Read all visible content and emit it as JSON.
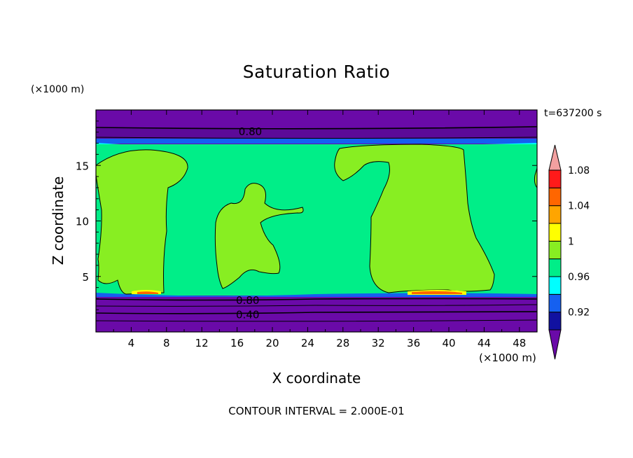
{
  "chart_data": {
    "type": "heatmap",
    "title": "Saturation Ratio",
    "xlabel": "X coordinate",
    "ylabel": "Z coordinate",
    "x_unit": "(×1000 m)",
    "y_unit": "(×1000 m)",
    "time_label": "t=637200 s",
    "footer": "CONTOUR INTERVAL = 2.000E-01",
    "xlim": [
      0,
      50
    ],
    "ylim": [
      0,
      20
    ],
    "x_ticks": [
      4,
      8,
      12,
      16,
      20,
      24,
      28,
      32,
      36,
      40,
      44,
      48
    ],
    "y_ticks": [
      5,
      10,
      15
    ],
    "contour_labels": [
      {
        "text": "0.80",
        "x": 17.5,
        "z": 18.1
      },
      {
        "text": "0.80",
        "x": 17.2,
        "z": 2.9
      },
      {
        "text": "0.40",
        "x": 17.2,
        "z": 1.6
      }
    ],
    "colorbar": {
      "levels": [
        "0.92",
        "0.96",
        "1",
        "1.04",
        "1.08"
      ],
      "colors": [
        "#6a0aa8",
        "#1111a0",
        "#1560f0",
        "#00ffff",
        "#00ee88",
        "#88ee22",
        "#ffff00",
        "#ffa500",
        "#ff6600",
        "#ff1a1a",
        "#f2a0a0"
      ]
    },
    "regions": [
      {
        "name": "upper dry layer",
        "value": "below 0.92",
        "z": [
          17.2,
          20
        ]
      },
      {
        "name": "moist layer",
        "value": "0.96-1",
        "z": [
          3.2,
          16.8
        ]
      },
      {
        "name": "lower dry layer",
        "value": "below 0.92",
        "z": [
          0,
          3.2
        ]
      }
    ]
  }
}
